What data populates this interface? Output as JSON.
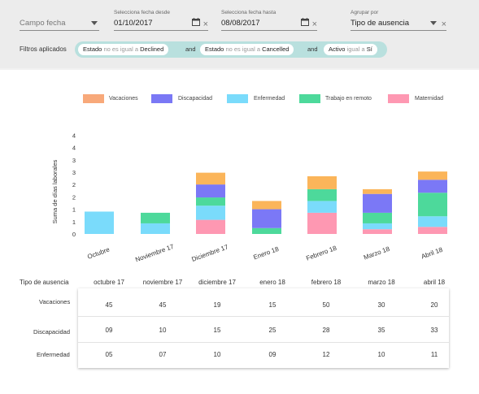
{
  "filters": {
    "campo_fecha": {
      "placeholder": "Campo fecha"
    },
    "desde": {
      "label": "Selecciona fecha desde",
      "value": "01/10/2017"
    },
    "hasta": {
      "label": "Selecciona fecha hasta",
      "value": "08/08/2017"
    },
    "agrupar": {
      "label": "Agrupar por",
      "value": "Tipo de ausencia"
    },
    "applied_label": "Filtros aplicados",
    "connector": "and",
    "chips": [
      {
        "field": "Estado",
        "op": "no es igual a",
        "value": "Declined"
      },
      {
        "field": "Estado",
        "op": "no es igual a",
        "value": "Cancelled"
      },
      {
        "field": "Activo",
        "op": "igual a",
        "value": "Sí"
      }
    ]
  },
  "icons": {
    "calendar": "calendar-icon",
    "clear": "close-icon",
    "dropdown": "chevron-down-icon"
  },
  "chart_data": {
    "type": "bar",
    "stacked": true,
    "ylabel": "Suma de días laborales",
    "ytick_labels": [
      "0",
      "1",
      "1",
      "2",
      "2",
      "3",
      "3",
      "4",
      "4"
    ],
    "ylim": [
      0,
      4.5
    ],
    "categories": [
      "Octubre",
      "Noviembre 17",
      "Diciembre 17",
      "Enero 18",
      "Febrero 18",
      "Marzo 18",
      "Abril 18"
    ],
    "legend_position": "top",
    "series": [
      {
        "name": "Maternidad",
        "color": "#fe98b2",
        "values": [
          0,
          0,
          0.6,
          0,
          0.9,
          0.2,
          0.3
        ]
      },
      {
        "name": "Enfermedad",
        "color": "#7adbfb",
        "values": [
          0.95,
          0.45,
          0.6,
          0,
          0.5,
          0.25,
          0.45
        ]
      },
      {
        "name": "Trabajo en remoto",
        "color": "#4dd99b",
        "values": [
          0,
          0.45,
          0.35,
          0.25,
          0.5,
          0.45,
          1.0
        ]
      },
      {
        "name": "Discapacidad",
        "color": "#7b78f6",
        "values": [
          0,
          0,
          0.55,
          0.8,
          0,
          0.8,
          0.55
        ]
      },
      {
        "name": "Vacaciones",
        "color": "#fbb55a",
        "values": [
          0,
          0,
          0.5,
          0.35,
          0.55,
          0.2,
          0.35
        ]
      }
    ]
  },
  "legend": [
    {
      "name": "Vacaciones",
      "color": "#f8a97a"
    },
    {
      "name": "Discapacidad",
      "color": "#7a78f5"
    },
    {
      "name": "Enfermedad",
      "color": "#7adbfb"
    },
    {
      "name": "Trabajo en remoto",
      "color": "#4dd99b"
    },
    {
      "name": "Maternidad",
      "color": "#fe98b2"
    }
  ],
  "table": {
    "header_label": "Tipo de ausencia",
    "columns": [
      "octubre 17",
      "noviembre 17",
      "diciembre 17",
      "enero 18",
      "febrero 18",
      "marzo 18",
      "abril 18"
    ],
    "rows": [
      {
        "label": "Vacaciones",
        "values": [
          "45",
          "45",
          "19",
          "15",
          "50",
          "30",
          "20"
        ]
      },
      {
        "label": "Discapacidad",
        "values": [
          "09",
          "10",
          "15",
          "25",
          "28",
          "35",
          "33"
        ]
      },
      {
        "label": "Enfermedad",
        "values": [
          "05",
          "07",
          "10",
          "09",
          "12",
          "10",
          "11"
        ]
      }
    ]
  }
}
